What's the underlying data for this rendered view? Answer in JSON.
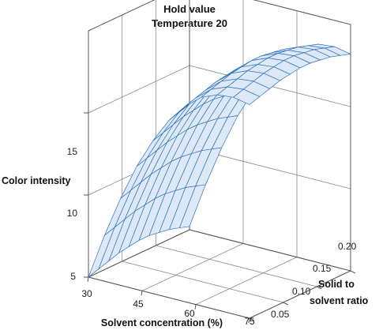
{
  "chart_data": {
    "type": "surface",
    "title_lines": [
      "Hold value",
      "Temperature 20"
    ],
    "xlabel": "Solvent concentration (%)",
    "ylabel_lines": [
      "Solid to",
      "solvent ratio"
    ],
    "zlabel": "Color intensity",
    "x_ticks": [
      "30",
      "45",
      "60",
      "75"
    ],
    "y_ticks": [
      "0.05",
      "0.10",
      "0.15",
      "0.20"
    ],
    "z_ticks": [
      "5",
      "10",
      "15"
    ],
    "xlim": [
      30,
      75
    ],
    "ylim": [
      0.05,
      0.2
    ],
    "zlim": [
      5,
      20
    ],
    "grid": true,
    "surface": {
      "x": [
        30,
        34.5,
        39,
        43.5,
        48,
        52.5,
        57,
        61.5,
        66,
        70.5,
        75
      ],
      "y": [
        0.05,
        0.065,
        0.08,
        0.095,
        0.11,
        0.125,
        0.14,
        0.155,
        0.17,
        0.185,
        0.2
      ],
      "z": [
        [
          5.0,
          5.2,
          5.4,
          5.6,
          5.7,
          5.8,
          5.8,
          5.7,
          5.6,
          5.4,
          5.2
        ],
        [
          7.8,
          8.0,
          8.2,
          8.4,
          8.5,
          8.6,
          8.6,
          8.5,
          8.4,
          8.2,
          8.0
        ],
        [
          10.3,
          10.5,
          10.7,
          10.9,
          11.0,
          11.1,
          11.1,
          11.0,
          10.9,
          10.7,
          10.5
        ],
        [
          12.5,
          12.7,
          12.9,
          13.1,
          13.2,
          13.3,
          13.3,
          13.2,
          13.1,
          12.9,
          12.7
        ],
        [
          14.3,
          14.5,
          14.7,
          14.9,
          15.0,
          15.1,
          15.1,
          15.0,
          14.9,
          14.7,
          14.5
        ],
        [
          15.8,
          16.0,
          16.2,
          16.4,
          16.5,
          16.6,
          16.6,
          16.5,
          16.4,
          16.2,
          16.0
        ],
        [
          16.9,
          17.1,
          17.3,
          17.5,
          17.6,
          17.7,
          17.7,
          17.6,
          17.5,
          17.3,
          17.1
        ],
        [
          17.7,
          17.9,
          18.1,
          18.3,
          18.4,
          18.5,
          18.5,
          18.4,
          18.3,
          18.1,
          17.9
        ],
        [
          18.1,
          18.3,
          18.5,
          18.7,
          18.8,
          18.9,
          18.9,
          18.8,
          18.7,
          18.5,
          18.3
        ],
        [
          18.2,
          18.4,
          18.6,
          18.8,
          18.9,
          19.0,
          19.0,
          18.9,
          18.8,
          18.6,
          18.4
        ],
        [
          18.0,
          18.2,
          18.4,
          18.6,
          18.7,
          18.8,
          18.8,
          18.7,
          18.6,
          18.4,
          18.2
        ]
      ]
    }
  }
}
